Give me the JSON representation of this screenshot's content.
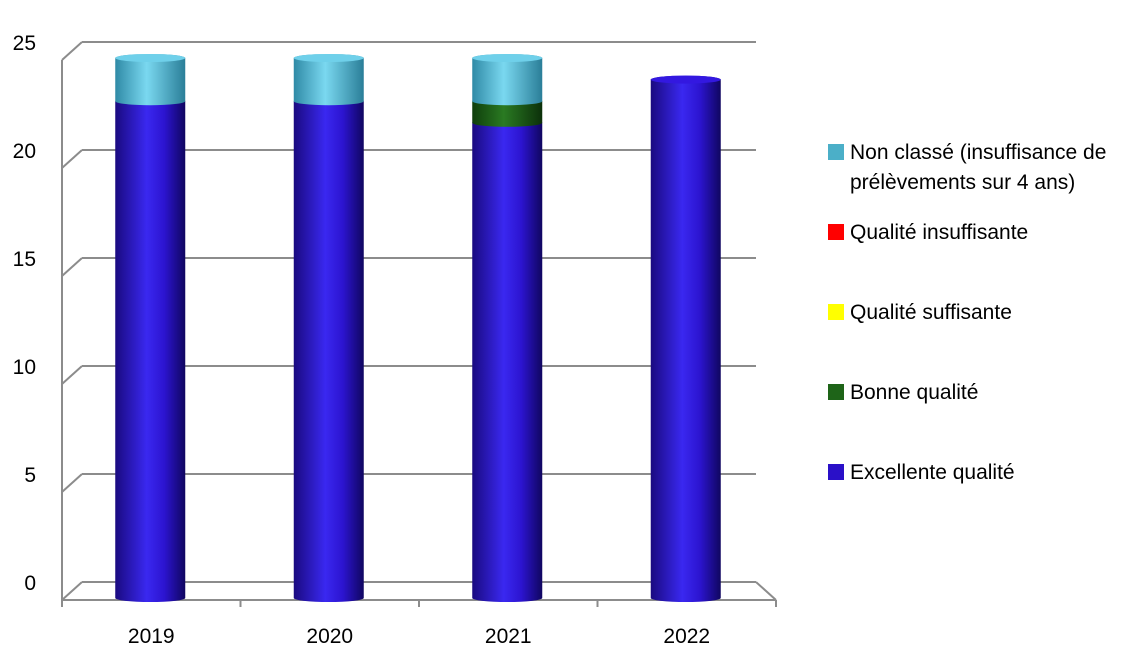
{
  "chart_data": {
    "type": "bar",
    "stacked": true,
    "style": "3d-cylinder",
    "categories": [
      "2019",
      "2020",
      "2021",
      "2022"
    ],
    "series": [
      {
        "name": "Excellente qualité",
        "color": "#2a10c8",
        "values": [
          23,
          23,
          22,
          24
        ]
      },
      {
        "name": "Bonne qualité",
        "color": "#1e6418",
        "values": [
          0,
          0,
          1,
          0
        ]
      },
      {
        "name": "Qualité suffisante",
        "color": "#ffff00",
        "values": [
          0,
          0,
          0,
          0
        ]
      },
      {
        "name": "Qualité insuffisante",
        "color": "#ff0000",
        "values": [
          0,
          0,
          0,
          0
        ]
      },
      {
        "name": "Non classé (insuffisance de prélèvements sur 4 ans)",
        "color": "#4bafc8",
        "values": [
          2,
          2,
          2,
          0
        ]
      }
    ],
    "ylim": [
      0,
      25
    ],
    "yticks": [
      "0",
      "5",
      "10",
      "15",
      "20",
      "25"
    ],
    "grid": true,
    "legend": "right"
  },
  "legend": {
    "items": [
      {
        "label": "Non classé (insuffisance de prélèvements sur 4 ans)",
        "color": "#4bafc8"
      },
      {
        "label": "Qualité insuffisante",
        "color": "#ff0000"
      },
      {
        "label": "Qualité suffisante",
        "color": "#ffff00"
      },
      {
        "label": "Bonne qualité",
        "color": "#1e6418"
      },
      {
        "label": "Excellente qualité",
        "color": "#2a10c8"
      }
    ]
  }
}
